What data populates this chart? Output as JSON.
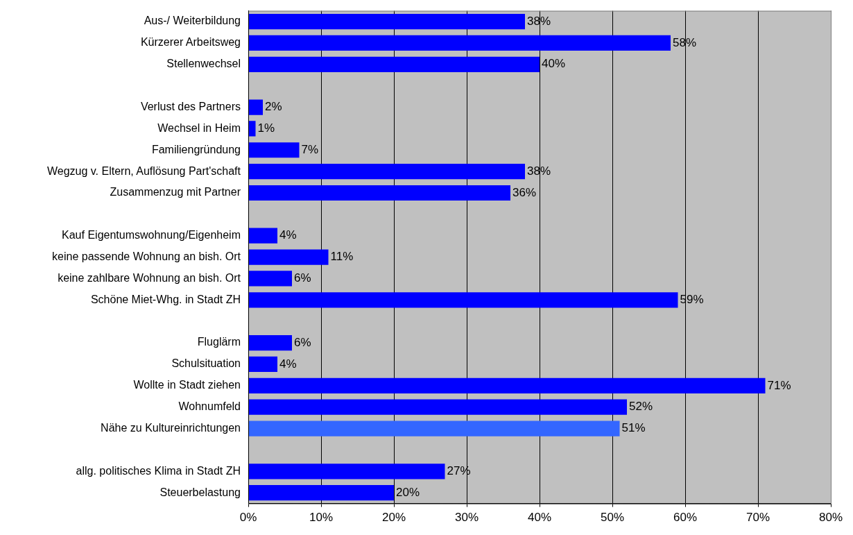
{
  "chart_data": {
    "type": "bar",
    "orientation": "horizontal",
    "categories": [
      "Aus-/ Weiterbildung",
      "Kürzerer Arbeitsweg",
      "Stellenwechsel",
      null,
      "Verlust des Partners",
      "Wechsel in Heim",
      "Familiengründung",
      "Wegzug v. Eltern, Auflösung Part'schaft",
      "Zusammenzug mit Partner",
      null,
      "Kauf Eigentumswohnung/Eigenheim",
      "keine passende Wohnung an bish. Ort",
      "keine zahlbare Wohnung an bish. Ort",
      "Schöne Miet-Whg. in Stadt ZH",
      null,
      "Fluglärm",
      "Schulsituation",
      "Wollte in Stadt ziehen",
      "Wohnumfeld",
      "Nähe zu Kultureinrichtungen",
      null,
      "allg. politisches Klima in Stadt ZH",
      "Steuerbelastung"
    ],
    "values": [
      38,
      58,
      40,
      null,
      2,
      1,
      7,
      38,
      36,
      null,
      4,
      11,
      6,
      59,
      null,
      6,
      4,
      71,
      52,
      51,
      null,
      27,
      20
    ],
    "value_labels": [
      "38%",
      "58%",
      "40%",
      null,
      "2%",
      "1%",
      "7%",
      "38%",
      "36%",
      null,
      "4%",
      "11%",
      "6%",
      "59%",
      null,
      "6%",
      "4%",
      "71%",
      "52%",
      "51%",
      null,
      "27%",
      "20%"
    ],
    "colors": [
      "#0000ff",
      "#0000ff",
      "#0000ff",
      null,
      "#0000ff",
      "#0000ff",
      "#0000ff",
      "#0000ff",
      "#0000ff",
      null,
      "#0000ff",
      "#0000ff",
      "#0000ff",
      "#0000ff",
      null,
      "#0000ff",
      "#0000ff",
      "#0000ff",
      "#0000ff",
      "#3366ff",
      null,
      "#0000ff",
      "#0000ff"
    ],
    "xlim": [
      0,
      80
    ],
    "xticks": [
      {
        "value": 0,
        "label": "0%"
      },
      {
        "value": 10,
        "label": "10%"
      },
      {
        "value": 20,
        "label": "20%"
      },
      {
        "value": 30,
        "label": "30%"
      },
      {
        "value": 40,
        "label": "40%"
      },
      {
        "value": 50,
        "label": "50%"
      },
      {
        "value": 60,
        "label": "60%"
      },
      {
        "value": 70,
        "label": "70%"
      },
      {
        "value": 80,
        "label": "80%"
      }
    ],
    "grid": "x",
    "legend": false
  }
}
